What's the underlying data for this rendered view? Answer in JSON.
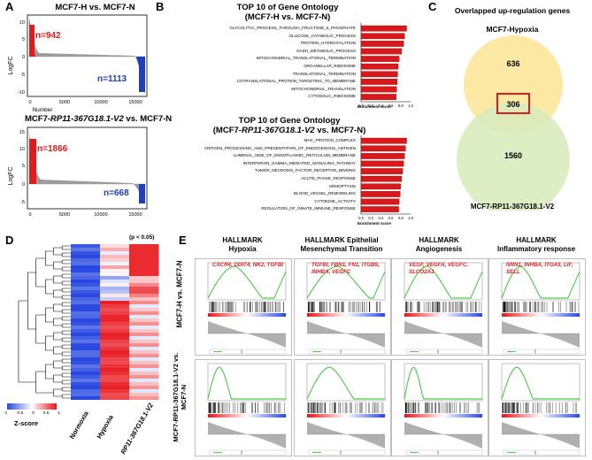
{
  "panel_labels": {
    "a": "A",
    "b": "B",
    "c": "C",
    "d": "D",
    "e": "E"
  },
  "panelA": {
    "top": {
      "title": "MCF7-H vs. MCF7-N",
      "n_up": "n=942",
      "n_down": "n=1113"
    },
    "bottom": {
      "title_prefix": "MCF7-",
      "title_italic": "RP11-367G18.1-V2",
      "title_suffix": " vs. MCF7-N",
      "n_up": "n=1866",
      "n_down": "n=668"
    },
    "ylabel": "LogFC",
    "xlabel": "Number",
    "top_yticks": [
      "10",
      "5",
      "0",
      "-5",
      "-10"
    ],
    "bottom_yticks": [
      "15",
      "10",
      "5",
      "0",
      "-5"
    ],
    "top_xticks": [
      "0",
      "5000",
      "10000",
      "15000"
    ],
    "bottom_xticks": [
      "0",
      "5000",
      "10000",
      "15000"
    ]
  },
  "panelB": {
    "top": {
      "title_line1": "TOP 10 of Gene Ontology",
      "title_line2": "(MCF7-H vs. MCF7-N)",
      "xlabel": "Enrichment score",
      "xticks": [
        "0.0",
        "0.2",
        "0.4",
        "0.6",
        "0.8",
        "1.0"
      ]
    },
    "bottom": {
      "title_line1": "TOP 10 of Gene Ontology",
      "title_line2_prefix": "(MCF7-",
      "title_line2_italic": "RP11-367G18.1-V2",
      "title_line2_suffix": " vs. MCF7-N)",
      "xlabel": "Enrichment score",
      "xticks": [
        "0.0",
        "0.2",
        "0.4",
        "0.6",
        "0.8",
        "1.0"
      ]
    }
  },
  "panelC": {
    "title": "Overlapped up-regulation genes",
    "set1": "MCF7-Hypoxia",
    "set2": "MCF7-RP11-367G18.1-V2",
    "only1": "636",
    "both": "306",
    "only2": "1560",
    "set1_color": "#fde9a4",
    "set2_color": "#d9ebbe"
  },
  "panelD": {
    "p_note": "(p < 0.05)",
    "columns": [
      "Normoxia",
      "Hypoxia",
      "RP11-367G18.1-V2"
    ],
    "legend_title": "Z-score",
    "legend_ticks": [
      "-1",
      "-0.5",
      "0",
      "0.5",
      "1"
    ]
  },
  "panelE": {
    "columns": [
      {
        "line1": "HALLMARK",
        "line2": "Hypoxia",
        "genes_line1": "CXCR4, DDIT4, NK2, TGFBI",
        "genes_line2": ""
      },
      {
        "line1": "HALLMARK Epithelial",
        "line2": "Mesenchymal Transition",
        "genes_line1": "TGFBI, FBN1, FN1, ITGB5,",
        "genes_line2": "INHBA, VEGFC"
      },
      {
        "line1": "HALLMARK",
        "line2": "Angiogenesis",
        "genes_line1": "VEGF, VEGFA, VEGFC,",
        "genes_line2": "SLCO2A1"
      },
      {
        "line1": "HALLMARK",
        "line2": "Inflammatory response",
        "genes_line1": "NRN1, INHBA, ITGA5, LIF,",
        "genes_line2": "SELL"
      }
    ],
    "row_labels": [
      "MCF7-H vs. MCF7-N",
      "MCF7-RP11-367G18.1-V2 vs. MCF7-N"
    ]
  },
  "chart_data": [
    {
      "type": "bar",
      "orientation": "horizontal",
      "title": "TOP 10 of Gene Ontology (MCF7-H vs. MCF7-N)",
      "xlabel": "Enrichment score",
      "xlim": [
        0,
        1.0
      ],
      "categories": [
        "GLYCOLYTIC_PROCESS_THROUGH_FRUCTOSE_6_PHOSPHATE",
        "GLUCOSE_CATABOLIC_PROCESS",
        "PROTEIN_HYDROXYLATION",
        "NADH_METABOLIC_PROCESS",
        "MITOCHONDRIAL_TRANSLATIONAL_TERMINATION",
        "ORGANELLAR_RIBOSOME",
        "TRANSLATIONAL_TERMINATION",
        "COTRANSLATIONAL_PROTEIN_TARGETING_TO_MEMBRANE",
        "MITOCHONDRIAL_TRANSLATION",
        "CYTOSOLIC_RIBOSOME"
      ],
      "values": [
        0.92,
        0.88,
        0.86,
        0.82,
        0.77,
        0.75,
        0.74,
        0.73,
        0.72,
        0.71
      ],
      "color": "#d7191c"
    },
    {
      "type": "bar",
      "orientation": "horizontal",
      "title": "TOP 10 of Gene Ontology (MCF7-RP11-367G18.1-V2 vs. MCF7-N)",
      "xlabel": "Enrichment score",
      "xlim": [
        0,
        1.0
      ],
      "categories": [
        "MHC_PROTEIN_COMPLEX",
        "ANTIGEN_PROCESSING_AND_PRESENTATION_OF_ENDOGENOUS_ANTIGEN",
        "LUMENAL_SIDE_OF_ENDOPLASMIC_RETICULUM_MEMBRANE",
        "INTERFERON_GAMMA_MEDIATED_SIGNALING_PATHWAY",
        "TUMOR_NECROSIS_FACTOR_RECEPTOR_BINDING",
        "ACUTE_PHASE_RESPONSE",
        "HEMOPTYSIS",
        "BLOOD_VESSEL_REMODELING",
        "CYTOKINE_ACTIVITY",
        "REGULATION_OF_INNATE_IMMUNE_RESPONSE"
      ],
      "values": [
        0.92,
        0.9,
        0.88,
        0.86,
        0.84,
        0.82,
        0.8,
        0.79,
        0.77,
        0.76
      ],
      "color": "#d7191c"
    }
  ]
}
